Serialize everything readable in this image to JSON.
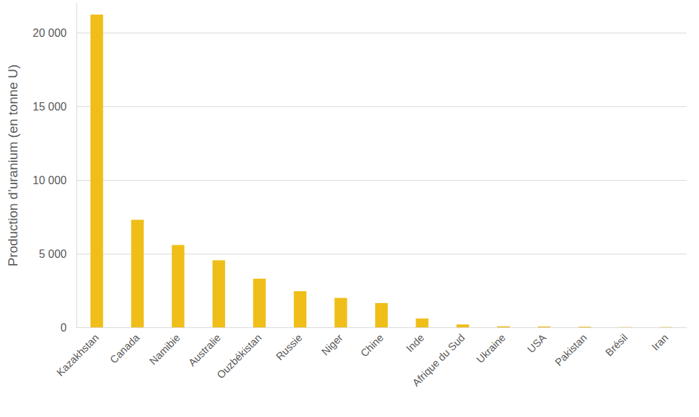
{
  "chart_data": {
    "type": "bar",
    "y_label": "Production d’uranium (en tonne U)",
    "categories": [
      "Kazakhstan",
      "Canada",
      "Namibie",
      "Australie",
      "Ouzbékistan",
      "Russie",
      "Niger",
      "Chine",
      "Inde",
      "Afrique du Sud",
      "Ukraine",
      "USA",
      "Pakistan",
      "Brésil",
      "Iran"
    ],
    "values": [
      21250,
      7300,
      5600,
      4550,
      3300,
      2450,
      2000,
      1650,
      600,
      200,
      70,
      60,
      45,
      15,
      20
    ],
    "color": "#f0be19",
    "ylim": [
      0,
      22000
    ],
    "yticks": [
      0,
      {
        "value": 5000,
        "label": "5 000"
      },
      {
        "value": 10000,
        "label": "10 000"
      },
      {
        "value": 15000,
        "label": "15 000"
      },
      {
        "value": 20000,
        "label": "20 000"
      }
    ],
    "grid": true
  }
}
